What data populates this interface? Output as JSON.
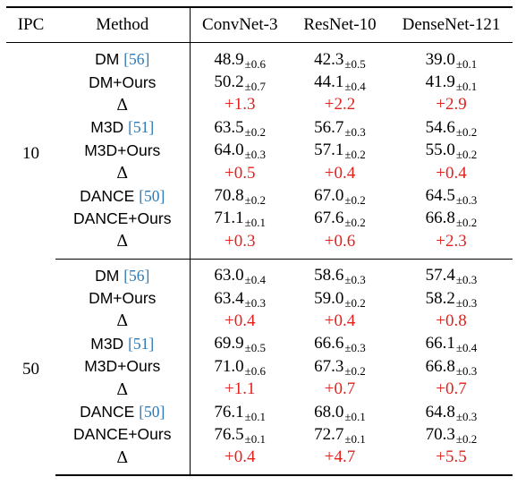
{
  "headers": [
    "IPC",
    "Method",
    "ConvNet-3",
    "ResNet-10",
    "DenseNet-121"
  ],
  "cite_color": "#2e7ab6",
  "delta_color": "#e3211c",
  "groups": [
    {
      "ipc": "10",
      "rows": [
        {
          "method": "DM",
          "cite": "[56]",
          "v": [
            [
              "48.9",
              "±0.6"
            ],
            [
              "42.3",
              "±0.5"
            ],
            [
              "39.0",
              "±0.1"
            ]
          ]
        },
        {
          "method": "DM+Ours",
          "v": [
            [
              "50.2",
              "±0.7"
            ],
            [
              "44.1",
              "±0.4"
            ],
            [
              "41.9",
              "±0.1"
            ]
          ]
        },
        {
          "method": "Δ",
          "d": [
            "+1.3",
            "+2.2",
            "+2.9"
          ]
        },
        {
          "method": "M3D",
          "cite": "[51]",
          "v": [
            [
              "63.5",
              "±0.2"
            ],
            [
              "56.7",
              "±0.3"
            ],
            [
              "54.6",
              "±0.2"
            ]
          ]
        },
        {
          "method": "M3D+Ours",
          "v": [
            [
              "64.0",
              "±0.3"
            ],
            [
              "57.1",
              "±0.2"
            ],
            [
              "55.0",
              "±0.2"
            ]
          ]
        },
        {
          "method": "Δ",
          "d": [
            "+0.5",
            "+0.4",
            "+0.4"
          ]
        },
        {
          "method": "DANCE",
          "cite": "[50]",
          "v": [
            [
              "70.8",
              "±0.2"
            ],
            [
              "67.0",
              "±0.2"
            ],
            [
              "64.5",
              "±0.3"
            ]
          ]
        },
        {
          "method": "DANCE+Ours",
          "v": [
            [
              "71.1",
              "±0.1"
            ],
            [
              "67.6",
              "±0.2"
            ],
            [
              "66.8",
              "±0.2"
            ]
          ]
        },
        {
          "method": "Δ",
          "d": [
            "+0.3",
            "+0.6",
            "+2.3"
          ]
        }
      ]
    },
    {
      "ipc": "50",
      "rows": [
        {
          "method": "DM",
          "cite": "[56]",
          "v": [
            [
              "63.0",
              "±0.4"
            ],
            [
              "58.6",
              "±0.3"
            ],
            [
              "57.4",
              "±0.3"
            ]
          ]
        },
        {
          "method": "DM+Ours",
          "v": [
            [
              "63.4",
              "±0.3"
            ],
            [
              "59.0",
              "±0.2"
            ],
            [
              "58.2",
              "±0.3"
            ]
          ]
        },
        {
          "method": "Δ",
          "d": [
            "+0.4",
            "+0.4",
            "+0.8"
          ]
        },
        {
          "method": "M3D",
          "cite": "[51]",
          "v": [
            [
              "69.9",
              "±0.5"
            ],
            [
              "66.6",
              "±0.3"
            ],
            [
              "66.1",
              "±0.4"
            ]
          ]
        },
        {
          "method": "M3D+Ours",
          "v": [
            [
              "71.0",
              "±0.6"
            ],
            [
              "67.3",
              "±0.2"
            ],
            [
              "66.8",
              "±0.3"
            ]
          ]
        },
        {
          "method": "Δ",
          "d": [
            "+1.1",
            "+0.7",
            "+0.7"
          ]
        },
        {
          "method": "DANCE",
          "cite": "[50]",
          "v": [
            [
              "76.1",
              "±0.1"
            ],
            [
              "68.0",
              "±0.1"
            ],
            [
              "64.8",
              "±0.3"
            ]
          ]
        },
        {
          "method": "DANCE+Ours",
          "v": [
            [
              "76.5",
              "±0.1"
            ],
            [
              "72.7",
              "±0.1"
            ],
            [
              "70.3",
              "±0.2"
            ]
          ]
        },
        {
          "method": "Δ",
          "d": [
            "+0.4",
            "+4.7",
            "+5.5"
          ]
        }
      ]
    }
  ]
}
